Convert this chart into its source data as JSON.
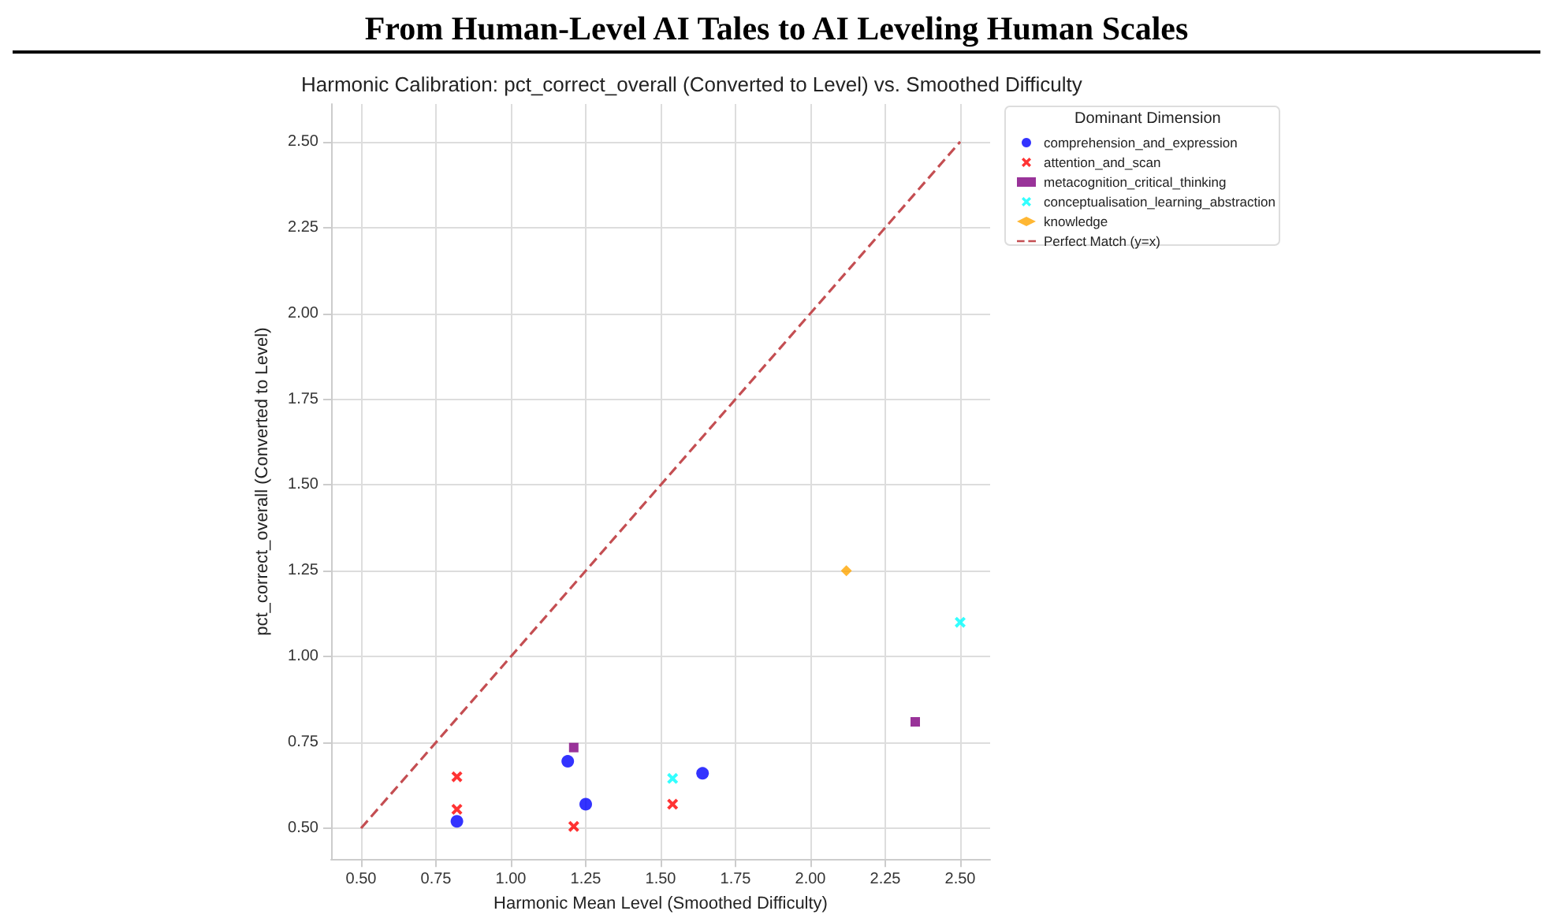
{
  "chart_data": {
    "type": "scatter",
    "title": "From Human-Level AI Tales to AI Leveling Human Scales",
    "subtitle": "Harmonic Calibration: pct_correct_overall (Converted to Level) vs. Smoothed Difficulty",
    "xlabel": "Harmonic Mean Level (Smoothed Difficulty)",
    "ylabel": "pct_correct_overall (Converted to Level)",
    "legend_title": "Dominant Dimension",
    "legend": "top right",
    "grid": true,
    "xlim": [
      0.4,
      2.6
    ],
    "xticks": [
      {
        "value": 0.5,
        "label": "0.50"
      },
      0.75,
      {
        "value": 1,
        "label": "1.00"
      },
      1.25,
      {
        "value": 1.5,
        "label": "1.50"
      },
      1.75,
      {
        "value": 2,
        "label": "2.00"
      },
      2.25,
      {
        "value": 2.5,
        "label": "2.50"
      }
    ],
    "ylim": [
      0.41,
      2.61
    ],
    "yticks": [
      {
        "value": 0.5,
        "label": "0.50"
      },
      0.75,
      {
        "value": 1,
        "label": "1.00"
      },
      1.25,
      {
        "value": 1.5,
        "label": "1.50"
      },
      1.75,
      {
        "value": 2,
        "label": "2.00"
      },
      2.25,
      {
        "value": 2.5,
        "label": "2.50"
      }
    ],
    "series": [
      {
        "name": "comprehension_and_expression",
        "color": "#0000ff",
        "marker": "circle",
        "x": [
          0.82,
          1.19,
          1.25,
          1.64
        ],
        "values": [
          0.52,
          0.695,
          0.57,
          0.66
        ]
      },
      {
        "name": "attention_and_scan",
        "color": "#ff0000",
        "marker": "cross",
        "x": [
          0.82,
          0.82,
          1.21,
          1.54
        ],
        "values": [
          0.65,
          0.555,
          0.505,
          0.57
        ]
      },
      {
        "name": "metacognition_critical_thinking",
        "color": "#800080",
        "marker": "square",
        "x": [
          1.21,
          2.35
        ],
        "values": [
          0.735,
          0.81
        ]
      },
      {
        "name": "conceptualisation_learning_abstraction",
        "color": "#00ffff",
        "marker": "cross",
        "x": [
          1.54,
          2.5
        ],
        "values": [
          0.645,
          1.1
        ]
      },
      {
        "name": "knowledge",
        "color": "#ffa500",
        "marker": "diamond",
        "x": [
          2.12
        ],
        "values": [
          1.25
        ]
      },
      {
        "name": "Perfect Match (y=x)",
        "type": "line",
        "color": "#c44e52",
        "line_style": "dashed",
        "marker": "none",
        "x": [
          0.5,
          2.5
        ],
        "values": [
          0.5,
          2.5
        ]
      }
    ]
  }
}
